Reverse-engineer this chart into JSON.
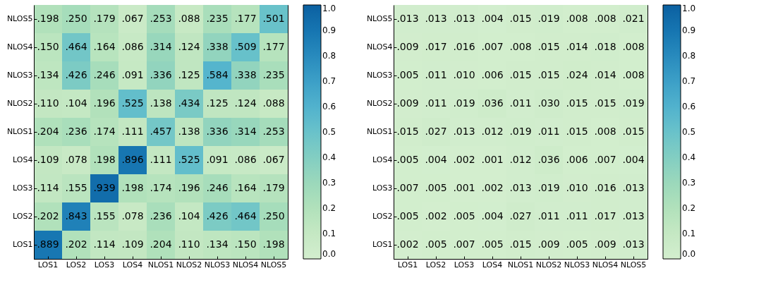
{
  "chart_data": [
    {
      "type": "heatmap",
      "categories": [
        "LOS1",
        "LOS2",
        "LOS3",
        "LOS4",
        "NLOS1",
        "NLOS2",
        "NLOS3",
        "NLOS4",
        "NLOS5"
      ],
      "y_categories": [
        "NLOS5",
        "NLOS4",
        "NLOS3",
        "NLOS2",
        "NLOS1",
        "LOS4",
        "LOS3",
        "LOS2",
        "LOS1"
      ],
      "cells": [
        [
          0.198,
          0.25,
          0.179,
          0.067,
          0.253,
          0.088,
          0.235,
          0.177,
          0.501
        ],
        [
          0.15,
          0.464,
          0.164,
          0.086,
          0.314,
          0.124,
          0.338,
          0.509,
          0.177
        ],
        [
          0.134,
          0.426,
          0.246,
          0.091,
          0.336,
          0.125,
          0.584,
          0.338,
          0.235
        ],
        [
          0.11,
          0.104,
          0.196,
          0.525,
          0.138,
          0.434,
          0.125,
          0.124,
          0.088
        ],
        [
          0.204,
          0.236,
          0.174,
          0.111,
          0.457,
          0.138,
          0.336,
          0.314,
          0.253
        ],
        [
          0.109,
          0.078,
          0.198,
          0.896,
          0.111,
          0.525,
          0.091,
          0.086,
          0.067
        ],
        [
          0.114,
          0.155,
          0.939,
          0.198,
          0.174,
          0.196,
          0.246,
          0.164,
          0.179
        ],
        [
          0.202,
          0.843,
          0.155,
          0.078,
          0.236,
          0.104,
          0.426,
          0.464,
          0.25
        ],
        [
          0.889,
          0.202,
          0.114,
          0.109,
          0.204,
          0.11,
          0.134,
          0.15,
          0.198
        ]
      ],
      "cell_labels": [
        [
          ".198",
          ".250",
          ".179",
          ".067",
          ".253",
          ".088",
          ".235",
          ".177",
          ".501"
        ],
        [
          ".150",
          ".464",
          ".164",
          ".086",
          ".314",
          ".124",
          ".338",
          ".509",
          ".177"
        ],
        [
          ".134",
          ".426",
          ".246",
          ".091",
          ".336",
          ".125",
          ".584",
          ".338",
          ".235"
        ],
        [
          ".110",
          ".104",
          ".196",
          ".525",
          ".138",
          ".434",
          ".125",
          ".124",
          ".088"
        ],
        [
          ".204",
          ".236",
          ".174",
          ".111",
          ".457",
          ".138",
          ".336",
          ".314",
          ".253"
        ],
        [
          ".109",
          ".078",
          ".198",
          ".896",
          ".111",
          ".525",
          ".091",
          ".086",
          ".067"
        ],
        [
          ".114",
          ".155",
          ".939",
          ".198",
          ".174",
          ".196",
          ".246",
          ".164",
          ".179"
        ],
        [
          ".202",
          ".843",
          ".155",
          ".078",
          ".236",
          ".104",
          ".426",
          ".464",
          ".250"
        ],
        [
          ".889",
          ".202",
          ".114",
          ".109",
          ".204",
          ".110",
          ".134",
          ".150",
          ".198"
        ]
      ],
      "clim": [
        0,
        1
      ],
      "cticks": [
        {
          "value": 0,
          "label": "0.0"
        },
        {
          "value": 0.1,
          "label": "0.1"
        },
        {
          "value": 0.2,
          "label": "0.2"
        },
        {
          "value": 0.3,
          "label": "0.3"
        },
        {
          "value": 0.4,
          "label": "0.4"
        },
        {
          "value": 0.5,
          "label": "0.5"
        },
        {
          "value": 0.6,
          "label": "0.6"
        },
        {
          "value": 0.7,
          "label": "0.7"
        },
        {
          "value": 0.8,
          "label": "0.8"
        },
        {
          "value": 0.9,
          "label": "0.9"
        },
        {
          "value": 1,
          "label": "1.0"
        }
      ]
    },
    {
      "type": "heatmap",
      "categories": [
        "LOS1",
        "LOS2",
        "LOS3",
        "LOS4",
        "NLOS1",
        "NLOS2",
        "NLOS3",
        "NLOS4",
        "NLOS5"
      ],
      "y_categories": [
        "NLOS5",
        "NLOS4",
        "NLOS3",
        "NLOS2",
        "NLOS1",
        "LOS4",
        "LOS3",
        "LOS2",
        "LOS1"
      ],
      "cells": [
        [
          0.013,
          0.013,
          0.013,
          0.004,
          0.015,
          0.019,
          0.008,
          0.008,
          0.021
        ],
        [
          0.009,
          0.017,
          0.016,
          0.007,
          0.008,
          0.015,
          0.014,
          0.018,
          0.008
        ],
        [
          0.005,
          0.011,
          0.01,
          0.006,
          0.015,
          0.015,
          0.024,
          0.014,
          0.008
        ],
        [
          0.009,
          0.011,
          0.019,
          0.036,
          0.011,
          0.03,
          0.015,
          0.015,
          0.019
        ],
        [
          0.015,
          0.027,
          0.013,
          0.012,
          0.019,
          0.011,
          0.015,
          0.008,
          0.015
        ],
        [
          0.005,
          0.004,
          0.002,
          0.001,
          0.012,
          0.036,
          0.006,
          0.007,
          0.004
        ],
        [
          0.007,
          0.005,
          0.001,
          0.002,
          0.013,
          0.019,
          0.01,
          0.016,
          0.013
        ],
        [
          0.005,
          0.002,
          0.005,
          0.004,
          0.027,
          0.011,
          0.011,
          0.017,
          0.013
        ],
        [
          0.002,
          0.005,
          0.007,
          0.005,
          0.015,
          0.009,
          0.005,
          0.009,
          0.013
        ]
      ],
      "cell_labels": [
        [
          ".013",
          ".013",
          ".013",
          ".004",
          ".015",
          ".019",
          ".008",
          ".008",
          ".021"
        ],
        [
          ".009",
          ".017",
          ".016",
          ".007",
          ".008",
          ".015",
          ".014",
          ".018",
          ".008"
        ],
        [
          ".005",
          ".011",
          ".010",
          ".006",
          ".015",
          ".015",
          ".024",
          ".014",
          ".008"
        ],
        [
          ".009",
          ".011",
          ".019",
          ".036",
          ".011",
          ".030",
          ".015",
          ".015",
          ".019"
        ],
        [
          ".015",
          ".027",
          ".013",
          ".012",
          ".019",
          ".011",
          ".015",
          ".008",
          ".015"
        ],
        [
          ".005",
          ".004",
          ".002",
          ".001",
          ".012",
          ".036",
          ".006",
          ".007",
          ".004"
        ],
        [
          ".007",
          ".005",
          ".001",
          ".002",
          ".013",
          ".019",
          ".010",
          ".016",
          ".013"
        ],
        [
          ".005",
          ".002",
          ".005",
          ".004",
          ".027",
          ".011",
          ".011",
          ".017",
          ".013"
        ],
        [
          ".002",
          ".005",
          ".007",
          ".005",
          ".015",
          ".009",
          ".005",
          ".009",
          ".013"
        ]
      ],
      "clim": [
        0,
        1
      ],
      "cticks": [
        {
          "value": 0,
          "label": "0.0"
        },
        {
          "value": 0.1,
          "label": "0.1"
        },
        {
          "value": 0.2,
          "label": "0.2"
        },
        {
          "value": 0.3,
          "label": "0.3"
        },
        {
          "value": 0.4,
          "label": "0.4"
        },
        {
          "value": 0.5,
          "label": "0.5"
        },
        {
          "value": 0.6,
          "label": "0.6"
        },
        {
          "value": 0.7,
          "label": "0.7"
        },
        {
          "value": 0.8,
          "label": "0.8"
        },
        {
          "value": 0.9,
          "label": "0.9"
        },
        {
          "value": 1,
          "label": "1.0"
        }
      ]
    }
  ]
}
